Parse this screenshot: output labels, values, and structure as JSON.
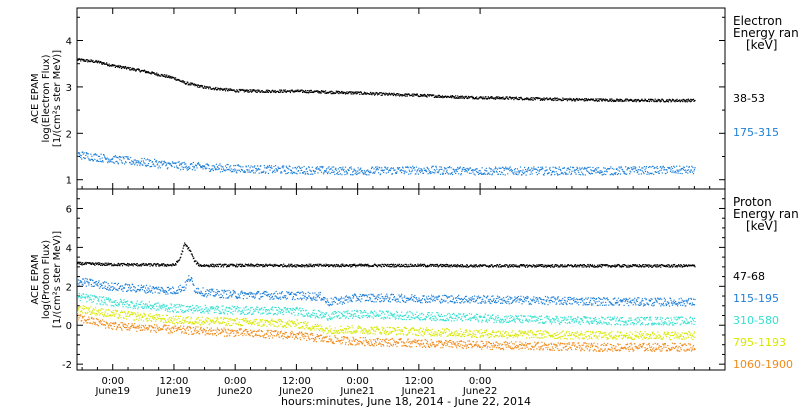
{
  "chart_data": [
    {
      "type": "scatter",
      "panel": "electron",
      "ylabel": [
        "ACE EPAM",
        "log(Electron Flux)",
        "[1/(cm²s ster MeV)]"
      ],
      "ylim": [
        0.8,
        4.7
      ],
      "yticks": [
        1,
        2,
        3,
        4
      ],
      "legend_title": [
        "Electron",
        "Energy ran",
        "[keV]"
      ],
      "series": [
        {
          "name": "38-53",
          "color": "#000000",
          "x": [
            -7,
            -3,
            0,
            6,
            12,
            14,
            18,
            24,
            30,
            36,
            42,
            48,
            54,
            60,
            66,
            72,
            78,
            84,
            90,
            96,
            102,
            108,
            114
          ],
          "y": [
            3.6,
            3.55,
            3.47,
            3.35,
            3.2,
            3.1,
            3.0,
            2.93,
            2.92,
            2.92,
            2.9,
            2.88,
            2.85,
            2.83,
            2.8,
            2.78,
            2.77,
            2.75,
            2.74,
            2.73,
            2.72,
            2.72,
            2.72
          ]
        },
        {
          "name": "175-315",
          "color": "#1f7fd8",
          "x": [
            -7,
            0,
            12,
            24,
            36,
            48,
            60,
            72,
            84,
            96,
            108,
            114
          ],
          "y": [
            1.55,
            1.45,
            1.32,
            1.25,
            1.22,
            1.2,
            1.22,
            1.2,
            1.2,
            1.2,
            1.22,
            1.22
          ]
        }
      ]
    },
    {
      "type": "scatter",
      "panel": "proton",
      "ylabel": [
        "ACE EPAM",
        "log(Proton Flux)",
        "[1/(cm²s ster MeV)]"
      ],
      "ylim": [
        -2.3,
        7
      ],
      "yticks": [
        -2,
        0,
        2,
        4,
        6
      ],
      "legend_title": [
        "Proton",
        "Energy ran",
        "[keV]"
      ],
      "series": [
        {
          "name": "47-68",
          "color": "#000000",
          "x": [
            -7,
            0,
            12,
            13,
            14,
            15,
            16,
            17,
            20,
            24,
            36,
            48,
            60,
            72,
            84,
            96,
            108,
            114
          ],
          "y": [
            3.2,
            3.15,
            3.12,
            3.4,
            4.2,
            3.9,
            3.3,
            3.1,
            3.1,
            3.1,
            3.1,
            3.1,
            3.1,
            3.08,
            3.08,
            3.08,
            3.08,
            3.08
          ]
        },
        {
          "name": "115-195",
          "color": "#1f7fd8",
          "x": [
            -7,
            0,
            6,
            12,
            14,
            15,
            16,
            18,
            24,
            36,
            41,
            42,
            48,
            60,
            72,
            84,
            96,
            108,
            114
          ],
          "y": [
            2.3,
            2.0,
            1.9,
            1.8,
            2.0,
            2.5,
            1.9,
            1.7,
            1.6,
            1.55,
            1.5,
            1.2,
            1.45,
            1.4,
            1.35,
            1.3,
            1.25,
            1.22,
            1.22
          ]
        },
        {
          "name": "310-580",
          "color": "#33e0d0",
          "x": [
            -7,
            0,
            12,
            24,
            36,
            42,
            48,
            60,
            72,
            84,
            96,
            108,
            114
          ],
          "y": [
            1.5,
            1.2,
            0.9,
            0.8,
            0.75,
            0.5,
            0.6,
            0.5,
            0.4,
            0.3,
            0.25,
            0.25,
            0.25
          ]
        },
        {
          "name": "795-1193",
          "color": "#d8e800",
          "x": [
            -7,
            0,
            12,
            24,
            36,
            42,
            48,
            60,
            72,
            84,
            96,
            108,
            114
          ],
          "y": [
            0.9,
            0.6,
            0.3,
            0.2,
            0.1,
            -0.2,
            -0.2,
            -0.3,
            -0.4,
            -0.45,
            -0.5,
            -0.5,
            -0.5
          ]
        },
        {
          "name": "1060-1900",
          "color": "#f08a1a",
          "x": [
            -7,
            0,
            12,
            24,
            36,
            42,
            48,
            60,
            72,
            84,
            96,
            108,
            114
          ],
          "y": [
            0.4,
            0.0,
            -0.2,
            -0.35,
            -0.5,
            -0.7,
            -0.8,
            -0.9,
            -1.0,
            -1.05,
            -1.1,
            -1.1,
            -1.1
          ]
        }
      ]
    }
  ],
  "x_axis": {
    "label": "hours:minutes, June 18, 2014 - June 22, 2014",
    "xlim": [
      -7,
      120
    ],
    "ticks": [
      {
        "x": 0,
        "time": "0:00",
        "date": "June19"
      },
      {
        "x": 12,
        "time": "12:00",
        "date": "June19"
      },
      {
        "x": 24,
        "time": "0:00",
        "date": "June20"
      },
      {
        "x": 36,
        "time": "12:00",
        "date": "June20"
      },
      {
        "x": 48,
        "time": "0:00",
        "date": "June21"
      },
      {
        "x": 60,
        "time": "12:00",
        "date": "June21"
      },
      {
        "x": 72,
        "time": "0:00",
        "date": "June22"
      }
    ]
  }
}
